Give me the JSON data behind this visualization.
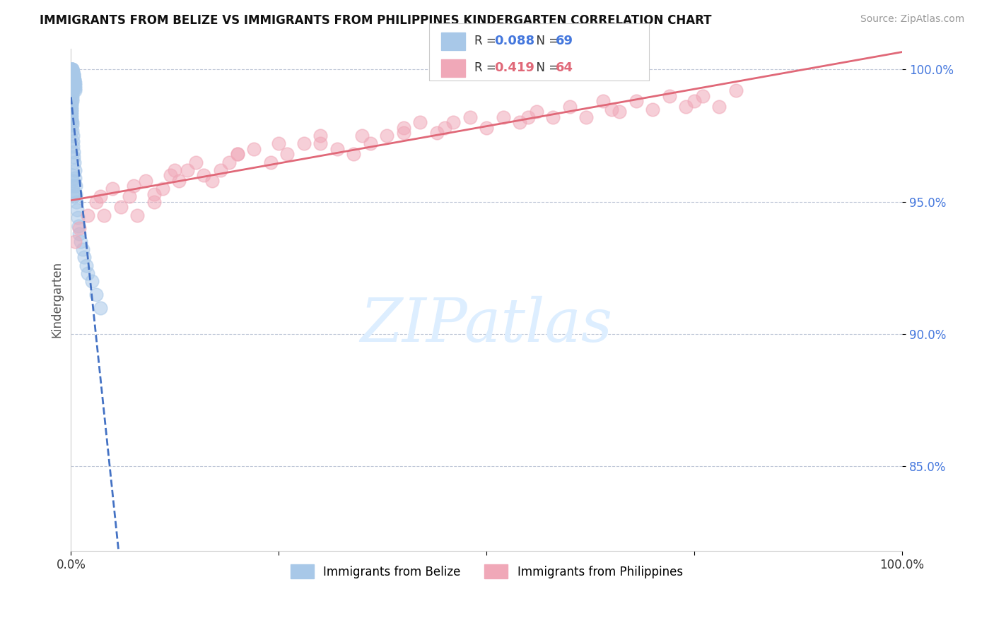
{
  "title": "IMMIGRANTS FROM BELIZE VS IMMIGRANTS FROM PHILIPPINES KINDERGARTEN CORRELATION CHART",
  "source_text": "Source: ZipAtlas.com",
  "ylabel": "Kindergarten",
  "xlim": [
    0.0,
    100.0
  ],
  "ylim": [
    0.818,
    1.008
  ],
  "belize_R": 0.088,
  "belize_N": 69,
  "philippines_R": 0.419,
  "philippines_N": 64,
  "belize_color": "#a8c8e8",
  "philippines_color": "#f0a8b8",
  "belize_line_color": "#4472c4",
  "philippines_line_color": "#e06878",
  "legend_label_belize": "Immigrants from Belize",
  "legend_label_philippines": "Immigrants from Philippines",
  "ytick_positions": [
    0.85,
    0.9,
    0.95,
    1.0
  ],
  "ytick_labels": [
    "85.0%",
    "90.0%",
    "95.0%",
    "100.0%"
  ],
  "belize_x": [
    0.05,
    0.08,
    0.1,
    0.12,
    0.15,
    0.18,
    0.2,
    0.22,
    0.25,
    0.28,
    0.3,
    0.32,
    0.35,
    0.38,
    0.4,
    0.42,
    0.45,
    0.48,
    0.5,
    0.52,
    0.3,
    0.28,
    0.33,
    0.27,
    0.25,
    0.23,
    0.2,
    0.18,
    0.15,
    0.12,
    0.1,
    0.08,
    0.06,
    0.04,
    0.03,
    0.02,
    0.07,
    0.09,
    0.11,
    0.14,
    0.17,
    0.19,
    0.22,
    0.26,
    0.29,
    0.35,
    0.4,
    0.45,
    0.5,
    0.55,
    0.6,
    0.65,
    0.7,
    0.8,
    0.9,
    1.0,
    1.2,
    1.4,
    1.6,
    1.8,
    2.0,
    2.5,
    3.0,
    3.5,
    0.15,
    0.2,
    0.25,
    0.3,
    0.35
  ],
  "belize_y": [
    1.0,
    1.0,
    1.0,
    1.0,
    1.0,
    0.999,
    0.999,
    0.999,
    0.998,
    0.998,
    0.998,
    0.997,
    0.997,
    0.996,
    0.996,
    0.995,
    0.995,
    0.994,
    0.993,
    0.992,
    0.998,
    0.997,
    0.996,
    0.995,
    0.994,
    0.993,
    0.992,
    0.991,
    0.99,
    0.989,
    0.988,
    0.987,
    0.986,
    0.985,
    0.984,
    0.983,
    0.982,
    0.981,
    0.98,
    0.979,
    0.977,
    0.975,
    0.973,
    0.971,
    0.969,
    0.967,
    0.965,
    0.962,
    0.959,
    0.956,
    0.953,
    0.95,
    0.947,
    0.944,
    0.941,
    0.938,
    0.935,
    0.932,
    0.929,
    0.926,
    0.923,
    0.92,
    0.915,
    0.91,
    0.96,
    0.958,
    0.956,
    0.954,
    0.952
  ],
  "philippines_x": [
    0.5,
    1.0,
    2.0,
    3.0,
    4.0,
    5.0,
    6.0,
    7.0,
    8.0,
    9.0,
    10.0,
    11.0,
    12.0,
    13.0,
    14.0,
    15.0,
    16.0,
    17.0,
    18.0,
    19.0,
    20.0,
    22.0,
    24.0,
    26.0,
    28.0,
    30.0,
    32.0,
    34.0,
    36.0,
    38.0,
    40.0,
    42.0,
    44.0,
    46.0,
    48.0,
    50.0,
    52.0,
    54.0,
    56.0,
    58.0,
    60.0,
    62.0,
    64.0,
    66.0,
    68.0,
    70.0,
    72.0,
    74.0,
    76.0,
    78.0,
    80.0,
    3.5,
    7.5,
    12.5,
    25.0,
    35.0,
    45.0,
    55.0,
    65.0,
    75.0,
    10.0,
    20.0,
    30.0,
    40.0
  ],
  "philippines_y": [
    0.935,
    0.94,
    0.945,
    0.95,
    0.945,
    0.955,
    0.948,
    0.952,
    0.945,
    0.958,
    0.95,
    0.955,
    0.96,
    0.958,
    0.962,
    0.965,
    0.96,
    0.958,
    0.962,
    0.965,
    0.968,
    0.97,
    0.965,
    0.968,
    0.972,
    0.975,
    0.97,
    0.968,
    0.972,
    0.975,
    0.978,
    0.98,
    0.976,
    0.98,
    0.982,
    0.978,
    0.982,
    0.98,
    0.984,
    0.982,
    0.986,
    0.982,
    0.988,
    0.984,
    0.988,
    0.985,
    0.99,
    0.986,
    0.99,
    0.986,
    0.992,
    0.952,
    0.956,
    0.962,
    0.972,
    0.975,
    0.978,
    0.982,
    0.985,
    0.988,
    0.953,
    0.968,
    0.972,
    0.976
  ],
  "watermark_text": "ZIPatlas",
  "watermark_color": "#ddeeff"
}
